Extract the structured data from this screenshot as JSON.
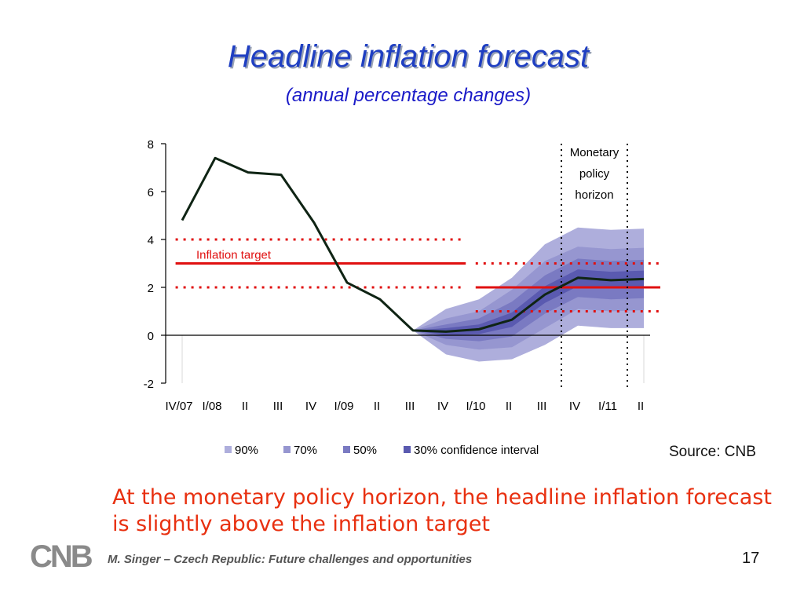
{
  "slide": {
    "title": "Headline inflation forecast",
    "subtitle": "(annual percentage changes)",
    "source": "Source: CNB",
    "message": "At the monetary policy horizon, the headline inflation forecast is slightly above the inflation target",
    "footer": "M. Singer – Czech Republic: Future challenges and opportunities",
    "page_number": "17",
    "logo_text": "CNB"
  },
  "chart_data": {
    "type": "line",
    "title": "",
    "xlabel": "",
    "ylabel": "",
    "ylim": [
      -2,
      8
    ],
    "yticks": [
      -2,
      0,
      2,
      4,
      6,
      8
    ],
    "categories": [
      "IV/07",
      "I/08",
      "II",
      "III",
      "IV",
      "I/09",
      "II",
      "III",
      "IV",
      "I/10",
      "II",
      "III",
      "IV",
      "I/11",
      "II"
    ],
    "series": [
      {
        "values": [
          4.8,
          7.4,
          6.8,
          6.7,
          4.7,
          2.2,
          1.5,
          0.2,
          0.15,
          0.25,
          0.65,
          1.7,
          2.4,
          2.3,
          2.35
        ],
        "color": "#0f2414"
      }
    ],
    "fan": {
      "start_index": 7,
      "bands": [
        {
          "name": "90%",
          "color": "#aeaedc",
          "lower": [
            0.2,
            -0.8,
            -1.1,
            -1.0,
            -0.4,
            0.4,
            0.3,
            0.3
          ],
          "upper": [
            0.2,
            1.1,
            1.5,
            2.4,
            3.8,
            4.5,
            4.4,
            4.45
          ]
        },
        {
          "name": "70%",
          "color": "#9696d0",
          "lower": [
            0.2,
            -0.4,
            -0.6,
            -0.5,
            0.3,
            1.1,
            1.0,
            1.05
          ],
          "upper": [
            0.2,
            0.7,
            1.0,
            1.9,
            3.1,
            3.7,
            3.6,
            3.65
          ]
        },
        {
          "name": "50%",
          "color": "#7a7ac2",
          "lower": [
            0.2,
            -0.15,
            -0.25,
            -0.05,
            0.9,
            1.6,
            1.5,
            1.55
          ],
          "upper": [
            0.2,
            0.45,
            0.7,
            1.4,
            2.5,
            3.2,
            3.1,
            3.15
          ]
        },
        {
          "name": "30% confidence interval",
          "color": "#5a5ab0",
          "lower": [
            0.2,
            0.0,
            0.05,
            0.35,
            1.35,
            2.05,
            1.95,
            2.0
          ],
          "upper": [
            0.2,
            0.3,
            0.45,
            0.95,
            2.05,
            2.75,
            2.65,
            2.7
          ]
        }
      ]
    },
    "inflation_target": {
      "label": "Inflation target",
      "color": "#e01010",
      "segments": [
        {
          "from_index": -0.2,
          "to_index": 8.6,
          "center": 3,
          "lower": 2,
          "upper": 4
        },
        {
          "from_index": 8.9,
          "to_index": 14.5,
          "center": 2,
          "lower": 1,
          "upper": 3
        }
      ]
    },
    "monetary_policy_horizon": {
      "label_lines": [
        "Monetary",
        "policy",
        "horizon"
      ],
      "from_index": 11.5,
      "to_index": 13.5
    },
    "legend": [
      "90%",
      "70%",
      "50%",
      "30% confidence interval"
    ],
    "legend_position": "bottom"
  }
}
